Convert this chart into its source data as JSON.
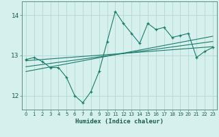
{
  "xlabel": "Humidex (Indice chaleur)",
  "background_color": "#d6f0ee",
  "grid_color": "#b0d8d4",
  "line_color": "#1a7a6a",
  "spine_color": "#5a8a80",
  "xlim": [
    -0.5,
    23.5
  ],
  "ylim": [
    11.65,
    14.35
  ],
  "yticks": [
    12,
    13,
    14
  ],
  "xticks": [
    0,
    1,
    2,
    3,
    4,
    5,
    6,
    7,
    8,
    9,
    10,
    11,
    12,
    13,
    14,
    15,
    16,
    17,
    18,
    19,
    20,
    21,
    22,
    23
  ],
  "main_x": [
    0,
    1,
    2,
    3,
    4,
    5,
    6,
    7,
    8,
    9,
    10,
    11,
    12,
    13,
    14,
    15,
    16,
    17,
    18,
    19,
    20,
    21,
    22,
    23
  ],
  "main_y": [
    12.9,
    12.95,
    12.85,
    12.7,
    12.7,
    12.45,
    12.0,
    11.82,
    12.1,
    12.6,
    13.35,
    14.1,
    13.8,
    13.55,
    13.3,
    13.8,
    13.65,
    13.7,
    13.45,
    13.5,
    13.55,
    12.95,
    13.1,
    13.2
  ],
  "trend1_x": [
    0,
    23
  ],
  "trend1_y": [
    12.87,
    13.22
  ],
  "trend2_x": [
    0,
    23
  ],
  "trend2_y": [
    12.72,
    13.35
  ],
  "trend3_x": [
    0,
    23
  ],
  "trend3_y": [
    12.6,
    13.48
  ]
}
